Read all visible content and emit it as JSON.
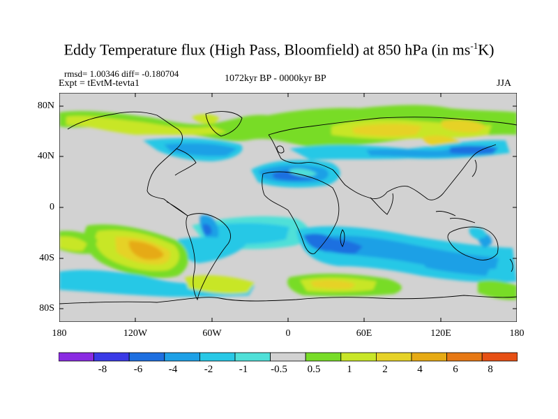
{
  "title_main": "Eddy Temperature flux (High Pass, Bloomfield) at 850 hPa (in ms",
  "title_sup": "-1",
  "title_end": "K)",
  "stats": "rmsd= 1.00346 diff= -0.180704",
  "expt": "Expt = tEvtM-tevta1",
  "period": "1072kyr BP - 0000kyr BP",
  "season": "JJA",
  "lat_labels": [
    "80N",
    "40N",
    "0",
    "40S",
    "80S"
  ],
  "lon_labels": [
    "180",
    "120W",
    "60W",
    "0",
    "60E",
    "120E",
    "180"
  ],
  "colorbar": {
    "labels": [
      "-8",
      "-6",
      "-4",
      "-2",
      "-1",
      "-0.5",
      "0.5",
      "1",
      "2",
      "4",
      "6",
      "8"
    ],
    "colors": [
      "#8a2be2",
      "#3a3ae6",
      "#1e6fe0",
      "#1ea0e6",
      "#28c8e6",
      "#50e0d8",
      "#d2d2d2",
      "#78dc28",
      "#c8e628",
      "#e6d228",
      "#e6aa14",
      "#e67814",
      "#e65014"
    ]
  }
}
